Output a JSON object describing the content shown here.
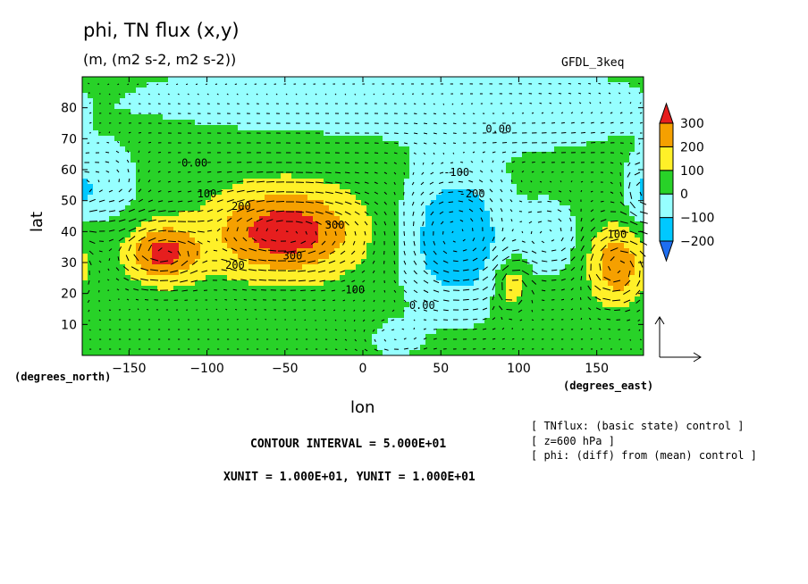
{
  "header": {
    "title": "phi, TN flux (x,y)",
    "subtitle": "(m, (m2 s-2, m2 s-2))",
    "model": "GFDL_3keq"
  },
  "footer": {
    "contour_interval": "CONTOUR INTERVAL = 5.000E+01",
    "vector_units": "XUNIT = 1.000E+01, YUNIT = 1.000E+01",
    "info": [
      "[ TNflux: (basic state) control ]",
      "[ z=600 hPa ]",
      "[ phi: (diff) from (mean) control ]"
    ]
  },
  "chart_data": {
    "type": "heatmap",
    "title": "phi, TN flux (x,y)",
    "xlabel": "lon",
    "ylabel": "lat",
    "x_units": "(degrees_east)",
    "y_units": "(degrees_north)",
    "xlim": [
      -180,
      180
    ],
    "ylim": [
      0,
      90
    ],
    "xticks": [
      -150,
      -100,
      -50,
      0,
      50,
      100,
      150
    ],
    "yticks": [
      10,
      20,
      30,
      40,
      50,
      60,
      70,
      80
    ],
    "colorbar": {
      "levels": [
        -200,
        -100,
        0,
        100,
        200,
        300
      ],
      "colors": [
        "#1e6ef0",
        "#00c8ff",
        "#96ffff",
        "#28d228",
        "#fff028",
        "#f5a000",
        "#e61e1e"
      ]
    },
    "contour_labels": [
      {
        "lon": 87,
        "lat": 72,
        "text": "0.00"
      },
      {
        "lon": -108,
        "lat": 61,
        "text": "0.00"
      },
      {
        "lon": -100,
        "lat": 51,
        "text": "100"
      },
      {
        "lon": -78,
        "lat": 47,
        "text": "200"
      },
      {
        "lon": -18,
        "lat": 41,
        "text": "300"
      },
      {
        "lon": -45,
        "lat": 31,
        "text": "300"
      },
      {
        "lon": -82,
        "lat": 28,
        "text": "200"
      },
      {
        "lon": -5,
        "lat": 20,
        "text": "100"
      },
      {
        "lon": 60,
        "lat": 58,
        "text": "-100"
      },
      {
        "lon": 70,
        "lat": 51,
        "text": "-200"
      },
      {
        "lon": 38,
        "lat": 15,
        "text": "0.00"
      },
      {
        "lon": 163,
        "lat": 38,
        "text": "100"
      }
    ],
    "features": [
      {
        "lon": -128,
        "lat": 33,
        "rx": 22,
        "ry": 9,
        "value": 300
      },
      {
        "lon": -50,
        "lat": 40,
        "rx": 45,
        "ry": 14,
        "value": 330
      },
      {
        "lon": 60,
        "lat": 38,
        "rx": 32,
        "ry": 22,
        "value": -240
      },
      {
        "lon": 163,
        "lat": 29,
        "rx": 17,
        "ry": 12,
        "value": 240
      },
      {
        "lon": -165,
        "lat": 55,
        "rx": 20,
        "ry": 12,
        "value": -110
      },
      {
        "lon": 120,
        "lat": 38,
        "rx": 18,
        "ry": 12,
        "value": -110
      },
      {
        "lon": 178,
        "lat": 52,
        "rx": 10,
        "ry": 10,
        "value": -100
      },
      {
        "lon": 20,
        "lat": 5,
        "rx": 20,
        "ry": 8,
        "value": -60
      },
      {
        "lon": 95,
        "lat": 23,
        "rx": 10,
        "ry": 8,
        "value": 150
      },
      {
        "lon": 10,
        "lat": 83,
        "rx": 190,
        "ry": 14,
        "value": -80
      },
      {
        "lon": 110,
        "lat": 75,
        "rx": 60,
        "ry": 10,
        "value": -50
      }
    ]
  }
}
